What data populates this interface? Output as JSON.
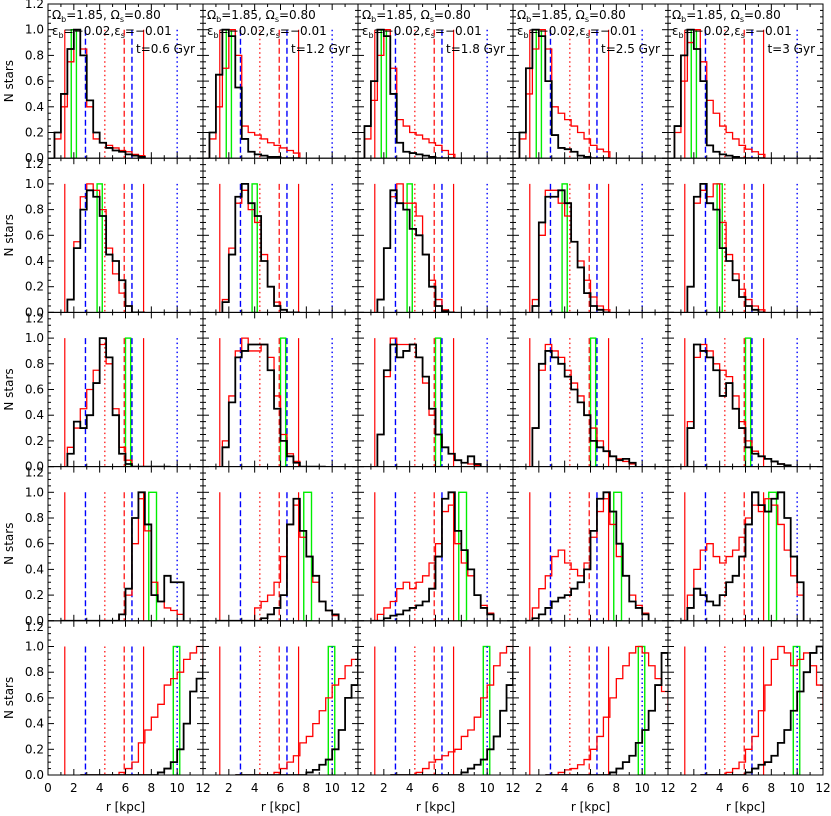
{
  "chart_data": {
    "type": "histogram-grid",
    "rows": 5,
    "cols": 5,
    "xlim": [
      0,
      12
    ],
    "ylim": [
      0,
      1.2
    ],
    "xlabel": "r [kpc]",
    "ylabel": "N stars",
    "xtick_labels": [
      "0",
      "2",
      "4",
      "6",
      "8",
      "10",
      "12"
    ],
    "ytick_labels": [
      "0.0",
      "0.2",
      "0.4",
      "0.6",
      "0.8",
      "1.0",
      "1.2"
    ],
    "annotation_line1": "Ωb=1.85, Ωs=0.80",
    "annotation_line2": "εb=−0.02,εs=−0.01",
    "time_labels": [
      "t=0.6 Gyr",
      "t=1.2 Gyr",
      "t=1.8 Gyr",
      "t=2.5 Gyr",
      "t=3 Gyr"
    ],
    "colors": {
      "black": "#000000",
      "red": "#ff0000",
      "blue": "#0000ff",
      "green": "#00ee00"
    },
    "bin_width": 0.5,
    "vertical_lines": {
      "red_solid": [
        1.3,
        7.4
      ],
      "red_dash": [
        5.9
      ],
      "red_dot": [
        4.4
      ],
      "blue_dash": [
        2.9,
        6.5
      ],
      "blue_dot": [
        10.0
      ]
    },
    "green_bands": [
      [
        1.8,
        2.2
      ],
      [
        3.8,
        4.2
      ],
      [
        6.0,
        6.4
      ],
      [
        7.8,
        8.4
      ],
      [
        9.7,
        10.2
      ]
    ],
    "row_start_bins": [
      1,
      3,
      3,
      2,
      5
    ],
    "black_hist": [
      [
        [
          0.2,
          0.5,
          0.85,
          1.0,
          0.8,
          0.45,
          0.2,
          0.12,
          0.08,
          0.06,
          0.05,
          0.03,
          0.02,
          0.01
        ],
        [
          0.2,
          0.65,
          1.0,
          0.95,
          0.55,
          0.15,
          0.05,
          0.03,
          0.02,
          0.01,
          0.01,
          0.0,
          0.0,
          0.0
        ],
        [
          0.25,
          0.6,
          1.0,
          0.95,
          0.5,
          0.12,
          0.05,
          0.04,
          0.03,
          0.02,
          0.01,
          0.0,
          0.0,
          0.0
        ],
        [
          0.2,
          0.7,
          1.0,
          0.95,
          0.6,
          0.18,
          0.08,
          0.07,
          0.05,
          0.02,
          0.01,
          0.0,
          0.0,
          0.0
        ],
        [
          0.25,
          0.8,
          1.0,
          0.85,
          0.6,
          0.1,
          0.05,
          0.03,
          0.02,
          0.01,
          0.0,
          0.0,
          0.0,
          0.0
        ]
      ],
      [
        [
          0.1,
          0.5,
          0.8,
          0.95,
          0.9,
          0.75,
          0.45,
          0.4,
          0.25,
          0.05,
          0.0,
          0.0
        ],
        [
          0.08,
          0.45,
          0.9,
          1.0,
          0.85,
          0.75,
          0.4,
          0.2,
          0.05,
          0.02,
          0.0,
          0.0
        ],
        [
          0.1,
          0.5,
          0.95,
          0.85,
          0.8,
          0.65,
          0.6,
          0.45,
          0.2,
          0.05,
          0.01,
          0.0
        ],
        [
          0.05,
          0.7,
          0.9,
          0.9,
          0.95,
          0.85,
          0.55,
          0.35,
          0.15,
          0.05,
          0.02,
          0.0
        ],
        [
          0.2,
          0.9,
          1.0,
          0.85,
          0.8,
          0.5,
          0.4,
          0.25,
          0.12,
          0.05,
          0.02,
          0.0
        ]
      ],
      [
        [
          0.1,
          0.35,
          0.3,
          0.4,
          0.65,
          1.0,
          0.85,
          0.4,
          0.1,
          0.02,
          0.0,
          0.0,
          0.0,
          0.0,
          0.0,
          0.0
        ],
        [
          0.15,
          0.5,
          0.85,
          0.9,
          0.95,
          0.95,
          0.95,
          0.75,
          0.45,
          0.2,
          0.08,
          0.03,
          0.0,
          0.0,
          0.0,
          0.0
        ],
        [
          0.25,
          0.75,
          0.95,
          0.85,
          0.9,
          0.95,
          0.85,
          0.7,
          0.45,
          0.25,
          0.15,
          0.1,
          0.05,
          0.03,
          0.08,
          0.02
        ],
        [
          0.3,
          0.8,
          0.9,
          0.85,
          0.8,
          0.7,
          0.6,
          0.5,
          0.4,
          0.2,
          0.15,
          0.12,
          0.08,
          0.05,
          0.06,
          0.03
        ],
        [
          0.3,
          0.95,
          0.9,
          0.85,
          0.75,
          0.55,
          0.65,
          0.45,
          0.3,
          0.15,
          0.1,
          0.08,
          0.06,
          0.04,
          0.02,
          0.01
        ]
      ],
      [
        [
          0.0,
          0.0,
          0.0,
          0.0,
          0.0,
          0.0,
          0.0,
          0.0,
          0.0,
          0.05,
          0.25,
          0.8,
          1.0,
          0.75,
          0.2,
          0.15,
          0.35,
          0.3,
          0.3
        ],
        [
          0.0,
          0.0,
          0.0,
          0.0,
          0.0,
          0.0,
          0.0,
          0.02,
          0.05,
          0.1,
          0.2,
          0.75,
          0.95,
          0.7,
          0.5,
          0.35,
          0.15,
          0.08,
          0.05
        ],
        [
          0.0,
          0.0,
          0.02,
          0.04,
          0.05,
          0.08,
          0.1,
          0.12,
          0.15,
          0.25,
          0.5,
          0.95,
          1.0,
          0.7,
          0.55,
          0.4,
          0.2,
          0.1,
          0.05
        ],
        [
          0.0,
          0.02,
          0.05,
          0.1,
          0.15,
          0.18,
          0.2,
          0.25,
          0.3,
          0.4,
          0.7,
          0.95,
          1.0,
          0.85,
          0.6,
          0.35,
          0.15,
          0.1,
          0.05
        ],
        [
          0.0,
          0.1,
          0.25,
          0.2,
          0.15,
          0.12,
          0.2,
          0.3,
          0.35,
          0.5,
          0.75,
          1.0,
          0.9,
          0.85,
          0.95,
          1.0,
          0.8,
          0.5,
          0.3
        ]
      ],
      [
        [
          0.0,
          0.0,
          0.0,
          0.0,
          0.0,
          0.0,
          0.0,
          0.0,
          0.0,
          0.0,
          0.0,
          0.0,
          0.02,
          0.05,
          0.1,
          0.2,
          0.4,
          0.65,
          0.75,
          0.85,
          1.0
        ],
        [
          0.0,
          0.0,
          0.0,
          0.0,
          0.0,
          0.0,
          0.0,
          0.0,
          0.0,
          0.0,
          0.0,
          0.02,
          0.04,
          0.08,
          0.12,
          0.2,
          0.35,
          0.6,
          0.7,
          1.0,
          0.95
        ],
        [
          0.0,
          0.0,
          0.0,
          0.0,
          0.0,
          0.0,
          0.0,
          0.0,
          0.0,
          0.0,
          0.0,
          0.02,
          0.05,
          0.08,
          0.12,
          0.2,
          0.3,
          0.5,
          0.7,
          0.95,
          0.85
        ],
        [
          0.0,
          0.0,
          0.0,
          0.0,
          0.0,
          0.0,
          0.0,
          0.0,
          0.0,
          0.0,
          0.02,
          0.05,
          0.1,
          0.15,
          0.25,
          0.35,
          0.5,
          0.7,
          0.95,
          0.85,
          0.6
        ],
        [
          0.0,
          0.0,
          0.0,
          0.0,
          0.0,
          0.0,
          0.0,
          0.02,
          0.05,
          0.08,
          0.1,
          0.15,
          0.25,
          0.35,
          0.5,
          0.65,
          0.8,
          0.95,
          1.0,
          0.9,
          0.7
        ]
      ]
    ],
    "red_hist": [
      [
        [
          0.15,
          0.4,
          0.75,
          1.0,
          0.85,
          0.4,
          0.15,
          0.12,
          0.1,
          0.08,
          0.06,
          0.05,
          0.03,
          0.02
        ],
        [
          0.15,
          0.4,
          0.7,
          1.0,
          0.8,
          0.25,
          0.2,
          0.18,
          0.15,
          0.12,
          0.1,
          0.08,
          0.06,
          0.04
        ],
        [
          0.15,
          0.45,
          0.8,
          1.0,
          0.7,
          0.3,
          0.25,
          0.2,
          0.18,
          0.15,
          0.12,
          0.1,
          0.06,
          0.03
        ],
        [
          0.15,
          0.5,
          0.85,
          1.0,
          0.85,
          0.4,
          0.35,
          0.3,
          0.25,
          0.2,
          0.15,
          0.1,
          0.07,
          0.05
        ],
        [
          0.2,
          0.6,
          0.9,
          1.0,
          0.75,
          0.45,
          0.35,
          0.25,
          0.2,
          0.15,
          0.1,
          0.07,
          0.05,
          0.03
        ]
      ],
      [
        [
          0.1,
          0.55,
          0.9,
          1.0,
          0.95,
          0.8,
          0.5,
          0.3,
          0.15,
          0.05,
          0.0,
          0.0
        ],
        [
          0.1,
          0.5,
          0.85,
          0.95,
          0.8,
          0.7,
          0.45,
          0.2,
          0.08,
          0.02,
          0.0,
          0.0
        ],
        [
          0.1,
          0.5,
          0.9,
          1.0,
          0.85,
          0.85,
          0.75,
          0.45,
          0.25,
          0.1,
          0.02,
          0.0
        ],
        [
          0.1,
          0.6,
          0.95,
          0.95,
          0.85,
          0.75,
          0.55,
          0.4,
          0.25,
          0.12,
          0.05,
          0.02
        ],
        [
          0.2,
          0.85,
          0.95,
          0.9,
          1.0,
          0.7,
          0.45,
          0.3,
          0.18,
          0.1,
          0.05,
          0.02
        ]
      ],
      [
        [
          0.15,
          0.3,
          0.45,
          0.6,
          0.75,
          0.95,
          0.8,
          0.45,
          0.15,
          0.05,
          0.0,
          0.0,
          0.0,
          0.0,
          0.0,
          0.0
        ],
        [
          0.2,
          0.55,
          0.9,
          1.0,
          0.9,
          0.9,
          0.95,
          0.85,
          0.55,
          0.25,
          0.1,
          0.04,
          0.0,
          0.0,
          0.0,
          0.0
        ],
        [
          0.25,
          0.7,
          1.0,
          0.95,
          0.95,
          0.95,
          0.85,
          0.65,
          0.4,
          0.25,
          0.15,
          0.1,
          0.05,
          0.03,
          0.02,
          0.01
        ],
        [
          0.3,
          0.75,
          0.95,
          0.9,
          0.85,
          0.75,
          0.65,
          0.55,
          0.4,
          0.3,
          0.2,
          0.12,
          0.08,
          0.06,
          0.04,
          0.02
        ],
        [
          0.35,
          0.85,
          0.95,
          0.9,
          0.8,
          0.75,
          0.7,
          0.55,
          0.35,
          0.2,
          0.12,
          0.08,
          0.06,
          0.04,
          0.02,
          0.01
        ]
      ],
      [
        [
          0.0,
          0.0,
          0.0,
          0.0,
          0.0,
          0.0,
          0.0,
          0.0,
          0.0,
          0.05,
          0.2,
          0.6,
          0.95,
          0.7,
          0.3,
          0.15,
          0.1,
          0.08,
          0.05
        ],
        [
          0.0,
          0.0,
          0.0,
          0.0,
          0.0,
          0.0,
          0.1,
          0.15,
          0.2,
          0.3,
          0.5,
          0.75,
          0.9,
          0.65,
          0.5,
          0.3,
          0.15,
          0.08,
          0.04
        ],
        [
          0.0,
          0.05,
          0.1,
          0.15,
          0.25,
          0.3,
          0.25,
          0.3,
          0.35,
          0.45,
          0.6,
          0.85,
          0.9,
          0.6,
          0.45,
          0.35,
          0.2,
          0.12,
          0.06
        ],
        [
          0.0,
          0.1,
          0.25,
          0.35,
          0.5,
          0.55,
          0.45,
          0.4,
          0.35,
          0.45,
          0.65,
          0.85,
          0.95,
          0.75,
          0.5,
          0.35,
          0.2,
          0.12,
          0.06
        ],
        [
          0.0,
          0.2,
          0.4,
          0.55,
          0.6,
          0.5,
          0.45,
          0.5,
          0.55,
          0.65,
          0.8,
          0.9,
          0.85,
          0.95,
          0.9,
          0.75,
          0.55,
          0.35,
          0.2
        ]
      ],
      [
        [
          0.0,
          0.0,
          0.0,
          0.0,
          0.0,
          0.0,
          0.02,
          0.05,
          0.1,
          0.25,
          0.35,
          0.45,
          0.55,
          0.7,
          0.75,
          0.8,
          0.9,
          0.95,
          1.0,
          0.85,
          0.5
        ],
        [
          0.0,
          0.0,
          0.0,
          0.0,
          0.0,
          0.0,
          0.02,
          0.05,
          0.1,
          0.15,
          0.25,
          0.3,
          0.4,
          0.5,
          0.6,
          0.7,
          0.75,
          0.85,
          0.9,
          0.95,
          1.0
        ],
        [
          0.0,
          0.0,
          0.0,
          0.0,
          0.02,
          0.05,
          0.1,
          0.12,
          0.15,
          0.18,
          0.2,
          0.3,
          0.35,
          0.45,
          0.6,
          0.7,
          0.85,
          0.95,
          1.0,
          0.85,
          0.6
        ],
        [
          0.0,
          0.0,
          0.02,
          0.04,
          0.05,
          0.08,
          0.12,
          0.2,
          0.3,
          0.45,
          0.6,
          0.75,
          0.85,
          0.95,
          1.0,
          0.95,
          0.85,
          0.75,
          0.65,
          0.5,
          0.35
        ],
        [
          0.0,
          0.0,
          0.0,
          0.0,
          0.02,
          0.05,
          0.1,
          0.2,
          0.3,
          0.5,
          0.7,
          0.9,
          1.0,
          0.95,
          0.85,
          0.9,
          0.95,
          0.85,
          0.7,
          0.5,
          0.3
        ]
      ]
    ]
  }
}
